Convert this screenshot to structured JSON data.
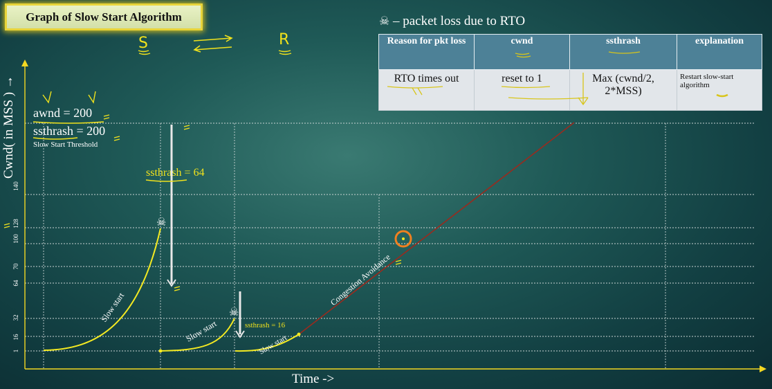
{
  "title": "Graph of Slow Start Algorithm",
  "annotations_top": {
    "s": "S",
    "r": "R"
  },
  "legend": {
    "icon": "skull-crossbones-icon",
    "text": "– packet loss due to RTO"
  },
  "table": {
    "headers": [
      "Reason for pkt loss",
      "cwnd",
      "ssthrash",
      "explanation"
    ],
    "row": [
      "RTO times out",
      "reset to 1",
      "Max (cwnd/2, 2*MSS)",
      "Restart slow-start algorithm"
    ]
  },
  "params": {
    "awnd": "awnd = 200",
    "ssthrash": "ssthrash = 200",
    "ssthrash_note": "Slow Start Threshold",
    "ssthrash_64": "ssthrash = 64",
    "ssthrash_16": "ssthrash = 16"
  },
  "axes": {
    "ylabel": "Cwnd( in MSS ) →",
    "xlabel": "Time ->",
    "yticks": [
      "1",
      "16",
      "32",
      "64",
      "70",
      "100",
      "128",
      "140"
    ]
  },
  "curve_labels": {
    "slow1": "Slow start",
    "slow2": "Slow start",
    "slow3": "Slow start",
    "ca": "Congestion Avoidance"
  },
  "colors": {
    "curve": "#f4ea22",
    "ca_line": "#9a2a1e",
    "grid": "#d0d8d8",
    "annotation": "#f1e21c"
  }
}
